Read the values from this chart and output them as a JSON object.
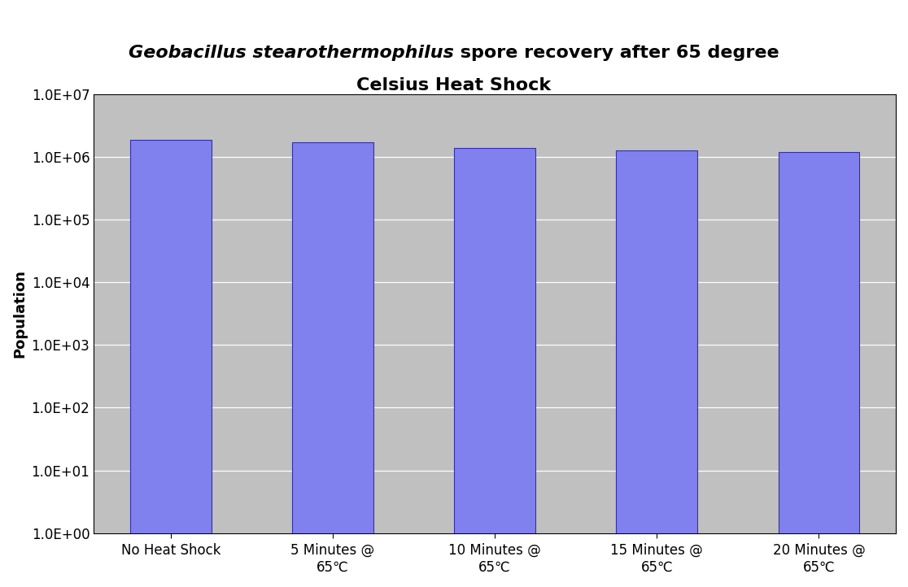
{
  "title_italic": "Geobacillus stearothermophilus",
  "title_normal_line1": " spore recovery after 65 degree",
  "title_normal_line2": "Celsius Heat Shock",
  "ylabel": "Population",
  "categories": [
    "No Heat Shock",
    "5 Minutes @\n65℃",
    "10 Minutes @\n65℃",
    "15 Minutes @\n65℃",
    "20 Minutes @\n65℃"
  ],
  "values": [
    1850000.0,
    1720000.0,
    1380000.0,
    1280000.0,
    1180000.0
  ],
  "bar_color": "#8080EE",
  "bar_edgecolor": "#3030AA",
  "background_color": "#C0C0C0",
  "figure_background": "#FFFFFF",
  "ylim_min": 1.0,
  "ylim_max": 10000000.0,
  "title_fontsize": 16,
  "axis_label_fontsize": 13,
  "tick_fontsize": 12,
  "xlabel_fontsize": 12,
  "grid_color": "#AAAAAA",
  "bar_width": 0.5
}
